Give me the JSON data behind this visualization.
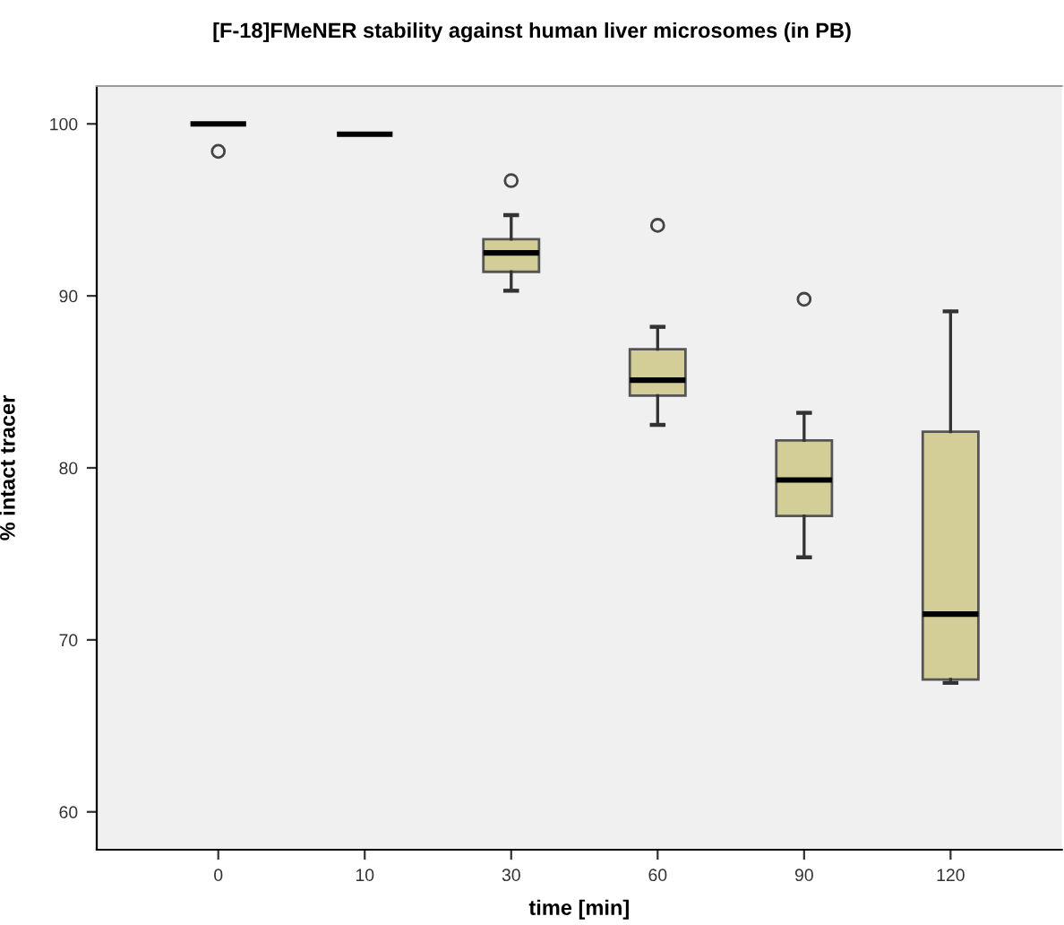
{
  "chart_data": {
    "type": "box",
    "title": "[F-18]FMeNER stability against human liver microsomes (in PB)",
    "xlabel": "time [min]",
    "ylabel": "% intact tracer",
    "categories": [
      "0",
      "10",
      "30",
      "60",
      "90",
      "120"
    ],
    "color": "#d3ce98",
    "boxes": [
      {
        "low": 100,
        "q1": 100,
        "median": 100,
        "q3": 100,
        "high": 100,
        "outliers": [
          98.4
        ]
      },
      {
        "low": 99.4,
        "q1": 99.4,
        "median": 99.4,
        "q3": 99.4,
        "high": 99.4
      },
      {
        "low": 90.3,
        "q1": 91.4,
        "median": 92.5,
        "q3": 93.3,
        "high": 94.7,
        "outliers": [
          96.7
        ]
      },
      {
        "low": 82.5,
        "q1": 84.2,
        "median": 85.1,
        "q3": 86.9,
        "high": 88.2,
        "outliers": [
          94.1
        ]
      },
      {
        "low": 74.8,
        "q1": 77.2,
        "median": 79.3,
        "q3": 81.6,
        "high": 83.2,
        "outliers": [
          89.8
        ]
      },
      {
        "low": 67.5,
        "q1": 67.7,
        "median": 71.5,
        "q3": 82.1,
        "high": 89.1
      }
    ],
    "ylim": [
      57.8,
      102.2
    ],
    "yticks": [
      60,
      70,
      80,
      90,
      100
    ],
    "grid": false
  }
}
